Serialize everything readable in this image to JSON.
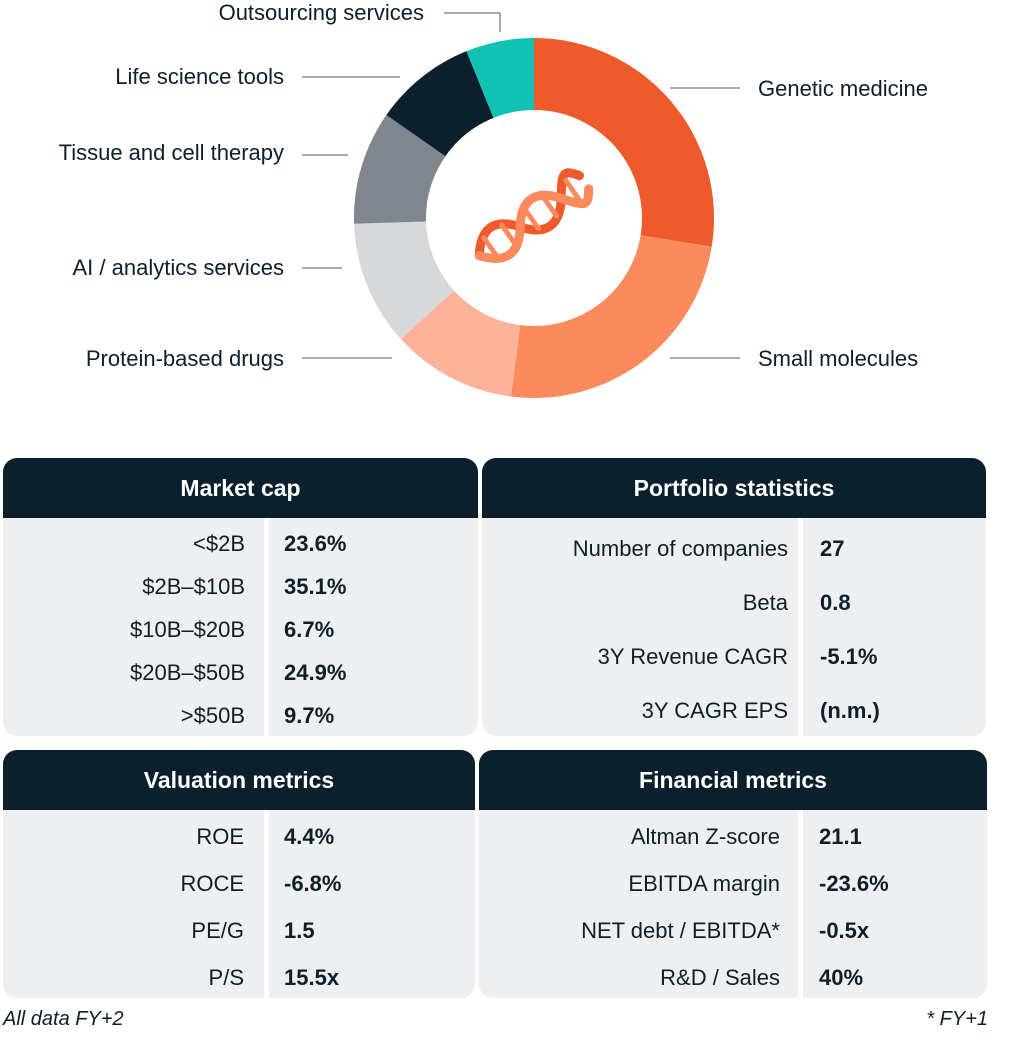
{
  "chart_data": {
    "type": "pie",
    "donut": true,
    "center_icon": "dna-helix-icon",
    "segments": [
      {
        "label": "Genetic medicine",
        "value": 27,
        "color": "#ef5a2c"
      },
      {
        "label": "Small molecules",
        "value": 24,
        "color": "#fb8a5d"
      },
      {
        "label": "Protein-based drugs",
        "value": 11,
        "color": "#fcb39a"
      },
      {
        "label": "AI / analytics services",
        "value": 11,
        "color": "#d7d8d9"
      },
      {
        "label": "Tissue and cell therapy",
        "value": 10,
        "color": "#7f868d"
      },
      {
        "label": "Life science tools",
        "value": 9,
        "color": "#0b1f2c"
      },
      {
        "label": "Outsourcing services",
        "value": 6,
        "color": "#10c1b4"
      }
    ]
  },
  "tables": {
    "market_cap": {
      "title": "Market cap",
      "rows": [
        {
          "label": "<$2B",
          "value": "23.6%"
        },
        {
          "label": "$2B–$10B",
          "value": "35.1%"
        },
        {
          "label": "$10B–$20B",
          "value": "6.7%"
        },
        {
          "label": "$20B–$50B",
          "value": "24.9%"
        },
        {
          "label": ">$50B",
          "value": "9.7%"
        }
      ]
    },
    "portfolio_statistics": {
      "title": "Portfolio statistics",
      "rows": [
        {
          "label": "Number of companies",
          "value": "27"
        },
        {
          "label": "Beta",
          "value": "0.8"
        },
        {
          "label": "3Y Revenue CAGR",
          "value": "-5.1%"
        },
        {
          "label": "3Y CAGR EPS",
          "value": "(n.m.)"
        }
      ]
    },
    "valuation_metrics": {
      "title": "Valuation metrics",
      "rows": [
        {
          "label": "ROE",
          "value": "4.4%"
        },
        {
          "label": "ROCE",
          "value": "-6.8%"
        },
        {
          "label": "PE/G",
          "value": "1.5"
        },
        {
          "label": "P/S",
          "value": "15.5x"
        }
      ]
    },
    "financial_metrics": {
      "title": "Financial metrics",
      "rows": [
        {
          "label": "Altman Z-score",
          "value": "21.1"
        },
        {
          "label": "EBITDA margin",
          "value": "-23.6%"
        },
        {
          "label": "NET debt / EBITDA*",
          "value": "-0.5x"
        },
        {
          "label": "R&D / Sales",
          "value": "40%"
        }
      ]
    }
  },
  "footnotes": {
    "left": "All data FY+2",
    "right": "* FY+1"
  },
  "colors": {
    "navy": "#0b1f2c",
    "panel_bg": "#eeeff0",
    "leader_line": "#8a9096"
  }
}
